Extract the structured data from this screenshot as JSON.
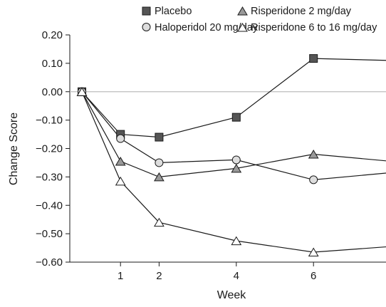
{
  "chart_data": {
    "type": "line",
    "xlabel": "Week",
    "ylabel": "Change Score",
    "x_ticks": [
      1,
      2,
      4,
      6
    ],
    "y_ticks": [
      "0.20",
      "0.10",
      "0.00",
      "−0.10",
      "−0.20",
      "−0.30",
      "−0.40",
      "−0.50",
      "−0.60"
    ],
    "ylim": [
      -0.6,
      0.2
    ],
    "xlim": [
      -0.3,
      8
    ],
    "reference_line_y": 0,
    "grid": false,
    "legend_position": "top",
    "series": [
      {
        "name": "Placebo",
        "marker": "square",
        "marker_fill": "#555555",
        "x": [
          0,
          1,
          2,
          4,
          6,
          8
        ],
        "y": [
          0.0,
          -0.15,
          -0.16,
          -0.09,
          0.117,
          0.11
        ]
      },
      {
        "name": "Haloperidol 20 mg/day",
        "marker": "circle",
        "marker_fill": "#dddddd",
        "x": [
          0,
          1,
          2,
          4,
          6,
          8
        ],
        "y": [
          0.0,
          -0.165,
          -0.25,
          -0.24,
          -0.31,
          -0.285
        ]
      },
      {
        "name": "Risperidone 2 mg/day",
        "marker": "triangle",
        "marker_fill": "#999999",
        "x": [
          0,
          1,
          2,
          4,
          6,
          8
        ],
        "y": [
          0.0,
          -0.245,
          -0.3,
          -0.27,
          -0.22,
          -0.245
        ]
      },
      {
        "name": "Risperidone 6 to 16 mg/day",
        "marker": "triangle",
        "marker_fill": "#ffffff",
        "x": [
          0,
          1,
          2,
          4,
          6,
          8
        ],
        "y": [
          0.0,
          -0.315,
          -0.46,
          -0.525,
          -0.565,
          -0.545
        ]
      }
    ]
  }
}
